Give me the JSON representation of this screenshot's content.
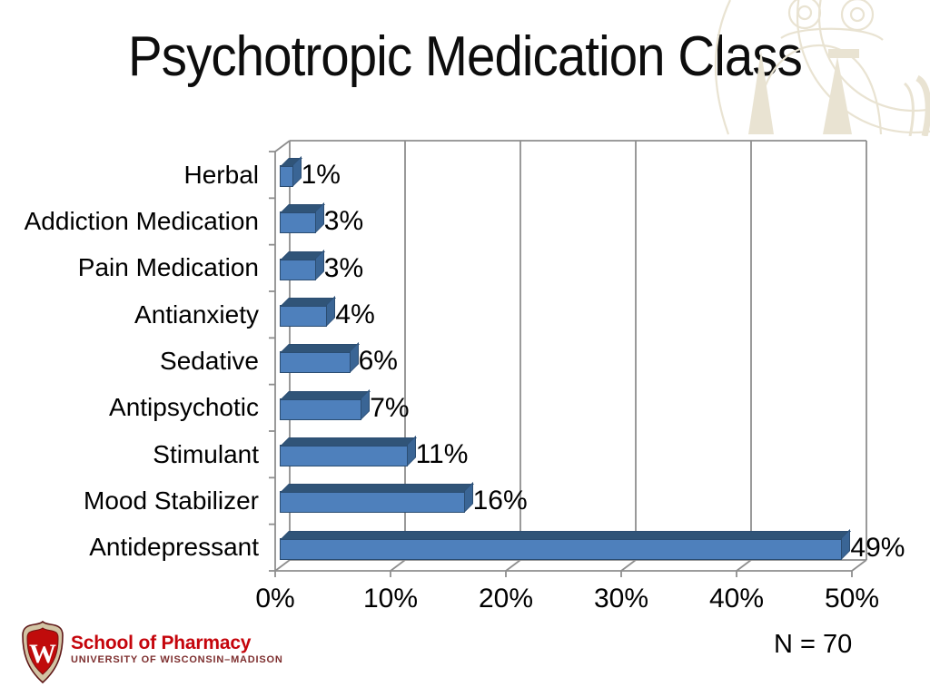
{
  "title": "Psychotropic Medication Class",
  "note": "N = 70",
  "logo": {
    "crest_letter": "W",
    "line1": "School of Pharmacy",
    "line2": "UNIVERSITY OF WISCONSIN–MADISON"
  },
  "chart_data": {
    "type": "bar",
    "orientation": "horizontal",
    "style": "3d",
    "title": "Psychotropic Medication Class",
    "xlabel": "",
    "ylabel": "",
    "categories": [
      "Herbal",
      "Addiction Medication",
      "Pain Medication",
      "Antianxiety",
      "Sedative",
      "Antipsychotic",
      "Stimulant",
      "Mood Stabilizer",
      "Antidepressant"
    ],
    "values": [
      1,
      3,
      3,
      4,
      6,
      7,
      11,
      16,
      49
    ],
    "value_labels": [
      "1%",
      "3%",
      "3%",
      "4%",
      "6%",
      "7%",
      "11%",
      "16%",
      "49%"
    ],
    "x_ticks": {
      "labels": [
        "0%",
        "10%",
        "20%",
        "30%",
        "40%",
        "50%"
      ],
      "values": [
        0,
        10,
        20,
        30,
        40,
        50
      ]
    },
    "xlim": [
      0,
      50
    ],
    "grid": true,
    "legend": false,
    "colors": {
      "bar_front": "#4e80bc",
      "bar_top": "#305478",
      "bar_side": "#3a6595",
      "bar_outline": "#2b4d72",
      "grid_line": "#8e8e8e",
      "label": "#000000"
    }
  }
}
